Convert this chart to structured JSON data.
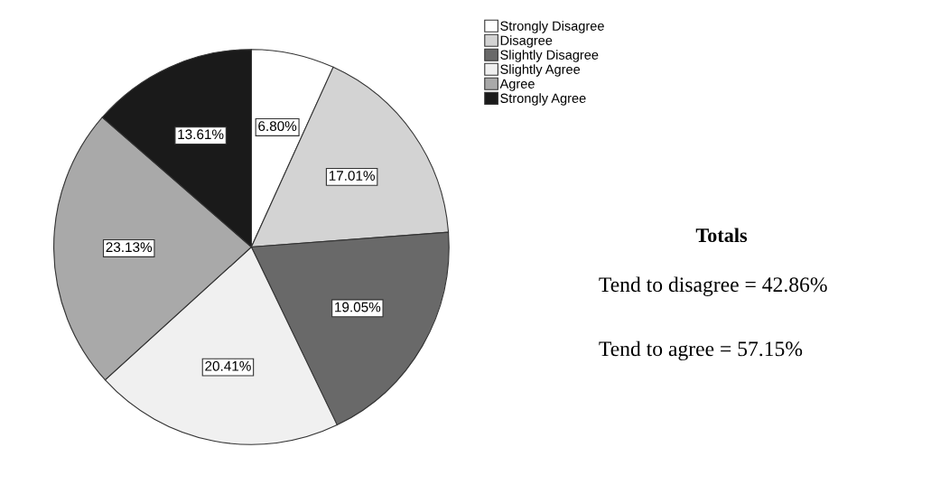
{
  "chart_data": {
    "type": "pie",
    "categories": [
      "Strongly Disagree",
      "Disagree",
      "Slightly Disagree",
      "Slightly Agree",
      "Agree",
      "Strongly Agree"
    ],
    "values": [
      6.8,
      17.01,
      19.05,
      20.41,
      23.13,
      13.61
    ],
    "colors": [
      "#ffffff",
      "#d3d3d3",
      "#696969",
      "#f0f0f0",
      "#a9a9a9",
      "#1a1a1a"
    ],
    "value_labels": [
      "6.80%",
      "17.01%",
      "19.05%",
      "20.41%",
      "23.13%",
      "13.61%"
    ],
    "legend": "top right",
    "annotations": [
      "Totals",
      "Tend to disagree = 42.86%",
      "Tend to agree = 57.15%"
    ]
  }
}
